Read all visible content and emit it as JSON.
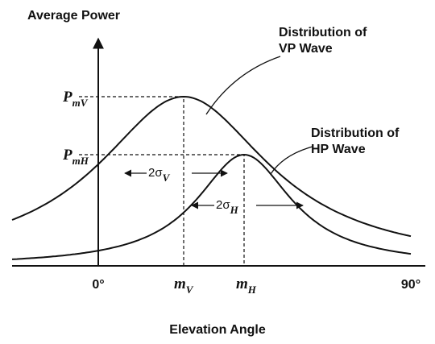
{
  "axes": {
    "y_label": "Average Power",
    "x_label": "Elevation Angle",
    "x_start": "0°",
    "x_end": "90°"
  },
  "vp": {
    "caption_line1": "Distribution of",
    "caption_line2": "VP Wave",
    "peak_label": {
      "main": "P",
      "sub": "mV"
    },
    "mean_label": {
      "main": "m",
      "sub": "V"
    },
    "width_label": {
      "main": "2σ",
      "sub": "V"
    }
  },
  "hp": {
    "caption_line1": "Distribution of",
    "caption_line2": "HP Wave",
    "peak_label": {
      "main": "P",
      "sub": "mH"
    },
    "mean_label": {
      "main": "m",
      "sub": "H"
    },
    "width_label": {
      "main": "2σ",
      "sub": "H"
    }
  }
}
